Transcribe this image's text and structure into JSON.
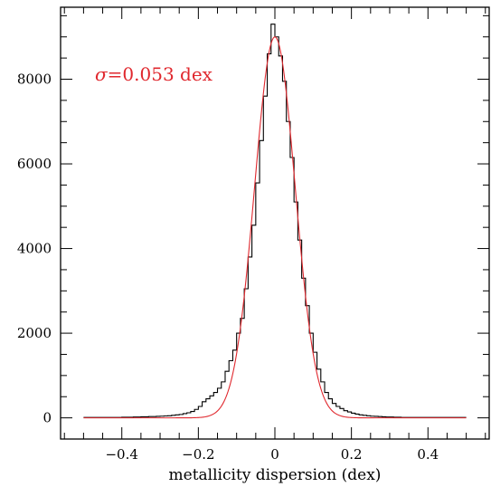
{
  "chart_data": {
    "type": "histogram",
    "xlabel": "metallicity dispersion (dex)",
    "ylabel": "",
    "xlim": [
      -0.56,
      0.56
    ],
    "ylim": [
      -500,
      9700
    ],
    "xticks": [
      -0.4,
      -0.2,
      0,
      0.2,
      0.4
    ],
    "xtick_labels": [
      "−0.4",
      "−0.2",
      "0",
      "0.2",
      "0.4"
    ],
    "yticks": [
      0,
      2000,
      4000,
      6000,
      8000
    ],
    "ytick_labels": [
      "0",
      "2000",
      "4000",
      "6000",
      "8000"
    ],
    "grid": false,
    "annotation": {
      "symbol": "σ",
      "text": "=0.053  dex",
      "color": "#e0282e"
    },
    "histogram": {
      "name": "",
      "color": "#000000",
      "bin_width": 0.01,
      "bin_start": -0.5,
      "counts": [
        10,
        10,
        10,
        10,
        10,
        10,
        10,
        10,
        10,
        10,
        15,
        15,
        15,
        20,
        20,
        25,
        25,
        30,
        30,
        35,
        40,
        45,
        50,
        60,
        70,
        80,
        100,
        120,
        150,
        200,
        270,
        380,
        450,
        520,
        600,
        700,
        850,
        1100,
        1350,
        1600,
        2000,
        2350,
        3050,
        3800,
        4550,
        5550,
        6550,
        7600,
        8600,
        9300,
        9000,
        8550,
        7950,
        7000,
        6150,
        5100,
        4200,
        3300,
        2650,
        2000,
        1550,
        1150,
        850,
        600,
        450,
        340,
        270,
        220,
        170,
        140,
        110,
        90,
        70,
        60,
        50,
        40,
        35,
        30,
        25,
        20,
        20,
        15,
        15,
        10,
        10,
        10,
        10,
        10,
        10,
        10,
        10,
        10,
        10,
        10,
        10,
        10,
        10,
        10,
        10,
        10
      ]
    },
    "fit": {
      "name": "",
      "type": "gaussian",
      "mu": 0.0,
      "sigma": 0.053,
      "amplitude": 9000,
      "color": "#e0282e"
    }
  }
}
